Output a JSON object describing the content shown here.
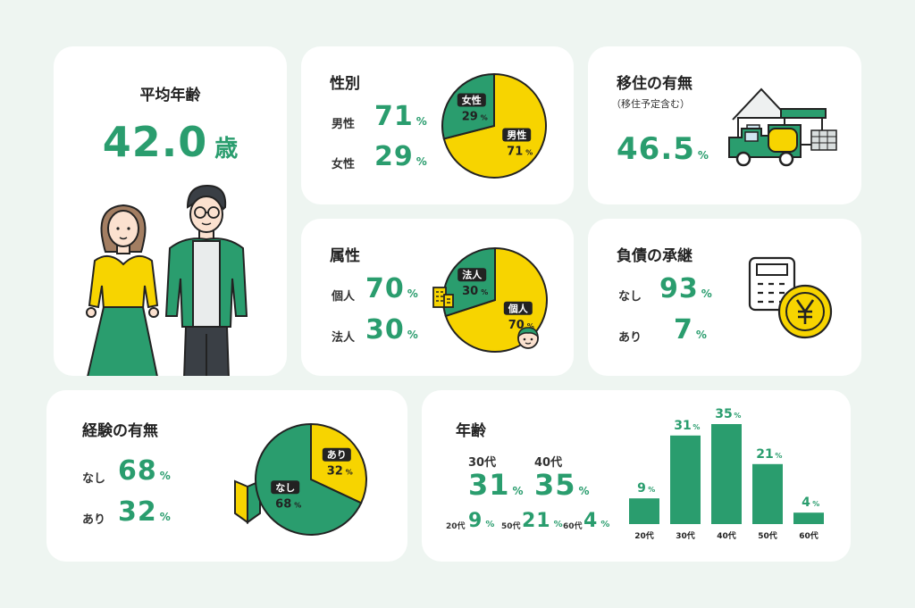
{
  "colors": {
    "green": "#2a9d6e",
    "yellow": "#f7d400",
    "dark": "#222222",
    "background": "#eef5f1"
  },
  "icons": [
    "woman-illustration",
    "man-illustration",
    "house-truck-illustration",
    "calculator-icon",
    "yen-coin-icon",
    "building-icon",
    "face-icon",
    "beginner-mark-icon"
  ],
  "age_avg": {
    "title": "平均年齢",
    "value": "42.0",
    "unit": "歳"
  },
  "gender": {
    "title": "性別",
    "rows": [
      {
        "label": "男性",
        "value": "71",
        "unit": "%"
      },
      {
        "label": "女性",
        "value": "29",
        "unit": "%"
      }
    ]
  },
  "relocation": {
    "title": "移住の有無",
    "subtitle": "（移住予定含む）",
    "value": "46.5",
    "unit": "%"
  },
  "attribute": {
    "title": "属性",
    "rows": [
      {
        "label": "個人",
        "value": "70",
        "unit": "%"
      },
      {
        "label": "法人",
        "value": "30",
        "unit": "%"
      }
    ]
  },
  "debt": {
    "title": "負債の承継",
    "rows": [
      {
        "label": "なし",
        "value": "93",
        "unit": "%"
      },
      {
        "label": "あり",
        "value": "7",
        "unit": "%"
      }
    ]
  },
  "experience": {
    "title": "経験の有無",
    "rows": [
      {
        "label": "なし",
        "value": "68",
        "unit": "%"
      },
      {
        "label": "あり",
        "value": "32",
        "unit": "%"
      }
    ]
  },
  "age": {
    "title": "年齢",
    "main": [
      {
        "label": "30代",
        "value": "31",
        "unit": "%"
      },
      {
        "label": "40代",
        "value": "35",
        "unit": "%"
      }
    ],
    "minor": [
      {
        "label": "20代",
        "value": "9",
        "unit": "%"
      },
      {
        "label": "50代",
        "value": "21",
        "unit": "%"
      },
      {
        "label": "60代",
        "value": "4",
        "unit": "%"
      }
    ]
  },
  "chart_data": [
    {
      "type": "pie",
      "labels": [
        "男性",
        "女性"
      ],
      "values": [
        71,
        29
      ],
      "unit": "%"
    },
    {
      "type": "pie",
      "labels": [
        "個人",
        "法人"
      ],
      "values": [
        70,
        30
      ],
      "unit": "%"
    },
    {
      "type": "pie",
      "labels": [
        "なし",
        "あり"
      ],
      "values": [
        68,
        32
      ],
      "unit": "%"
    },
    {
      "type": "bar",
      "categories": [
        "20代",
        "30代",
        "40代",
        "50代",
        "60代"
      ],
      "values": [
        9,
        31,
        35,
        21,
        4
      ],
      "unit": "%"
    }
  ]
}
